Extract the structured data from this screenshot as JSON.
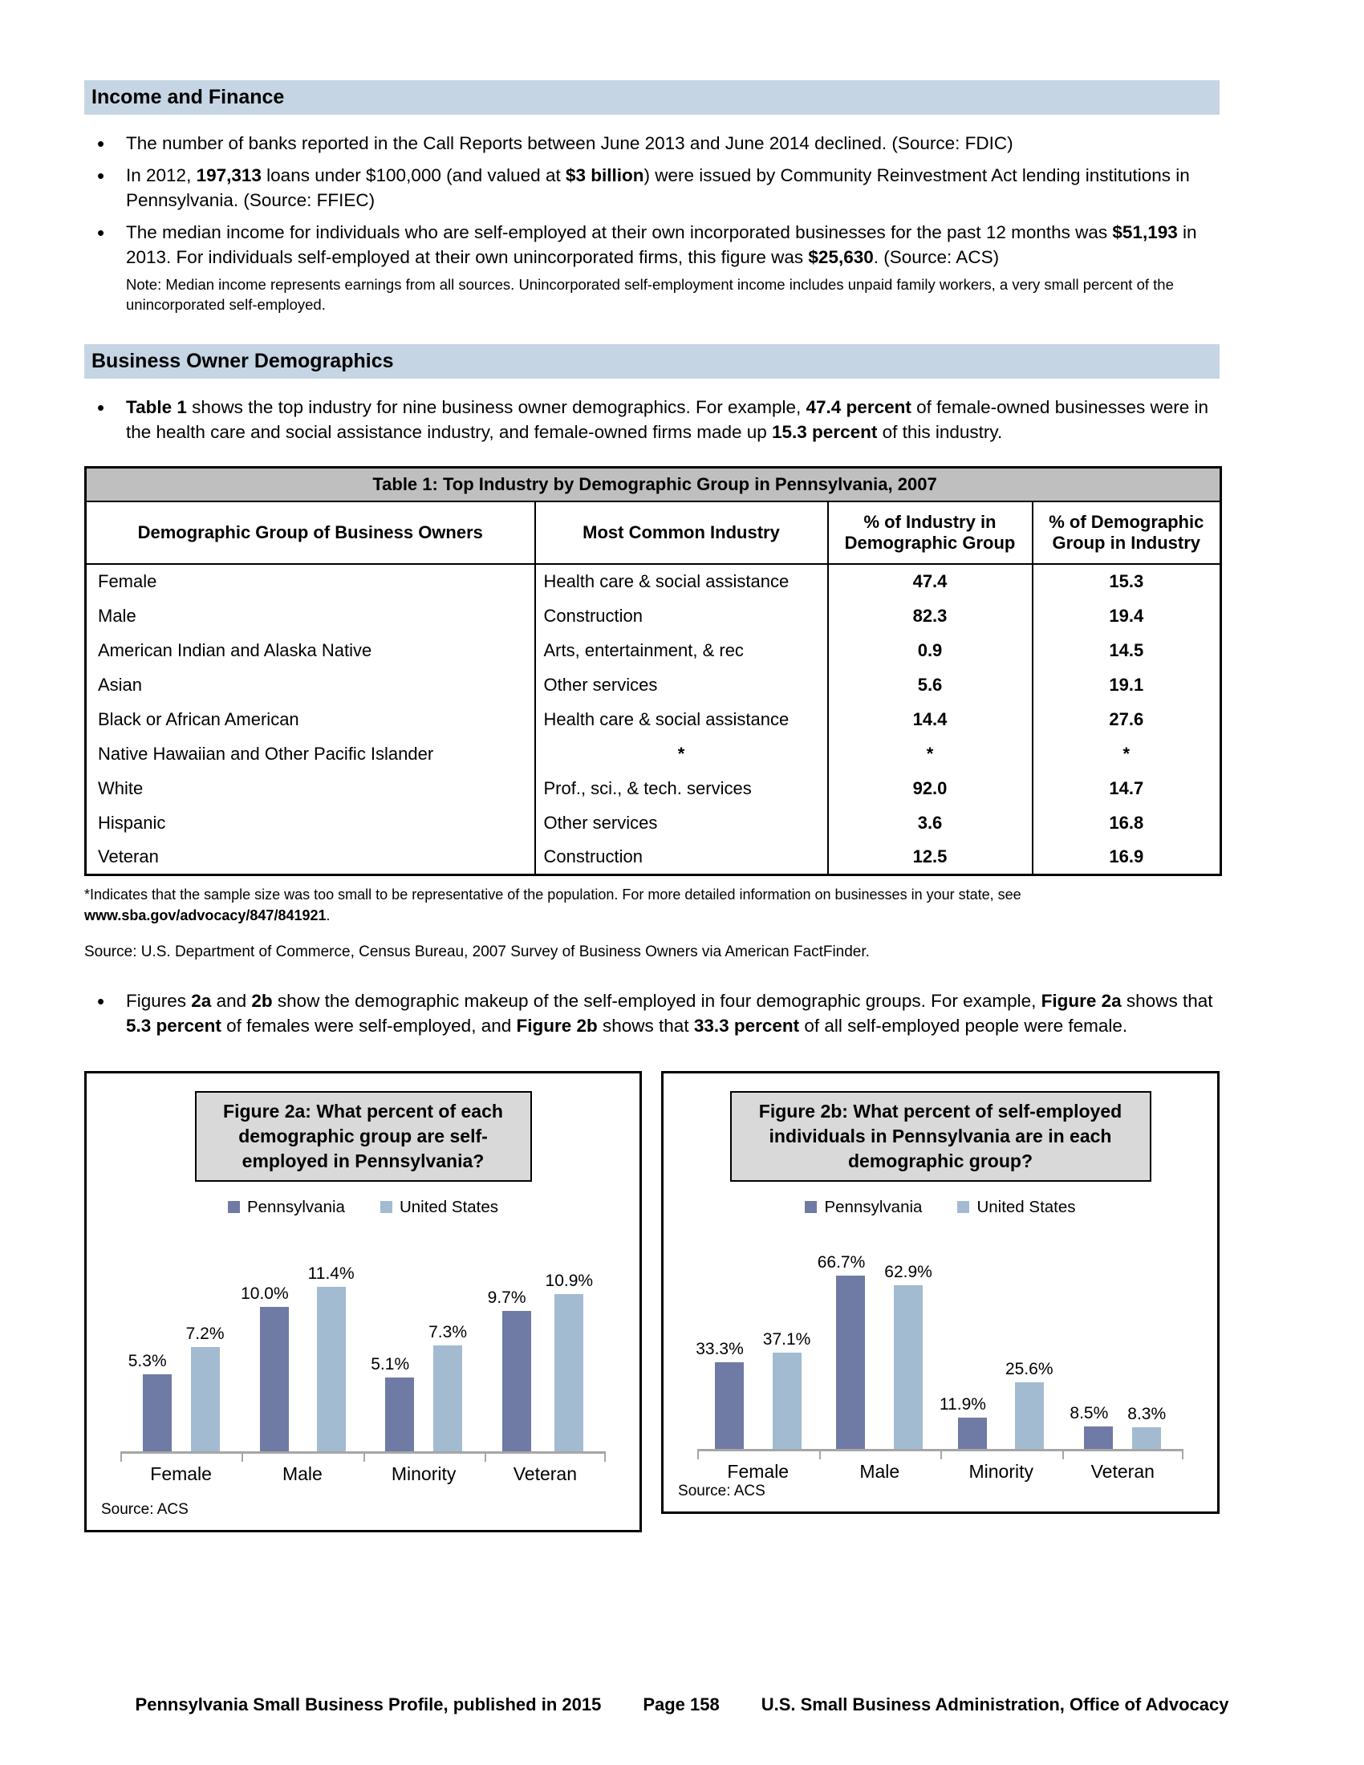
{
  "colors": {
    "section_header_bg": "#C5D5E3",
    "table_title_bg": "#BFBFBF",
    "figure_title_bg": "#D9D9D9",
    "pennsylvania_bar": "#6F7BA5",
    "united_states_bar": "#A3BBD1",
    "axis_line": "#A6A6A6"
  },
  "income_finance": {
    "title": "Income and Finance",
    "bullets": [
      {
        "segments": [
          {
            "t": "The number of banks reported in the Call Reports between June 2013 and June 2014 declined. (Source: FDIC)"
          }
        ]
      },
      {
        "segments": [
          {
            "t": "In 2012, "
          },
          {
            "t": "197,313",
            "b": 1
          },
          {
            "t": " loans under $100,000 (and valued at "
          },
          {
            "t": "$3 billion",
            "b": 1
          },
          {
            "t": ") were issued by Community Reinvestment Act lending institutions in Pennsylvania. (Source: FFIEC)"
          }
        ]
      },
      {
        "segments": [
          {
            "t": "The median income for individuals who are self-employed at their own incorporated businesses for the past 12 months was "
          },
          {
            "t": "$51,193",
            "b": 1
          },
          {
            "t": " in 2013. For individuals self-employed at their own unincorporated firms, this figure was "
          },
          {
            "t": "$25,630",
            "b": 1
          },
          {
            "t": ".  (Source: ACS)"
          }
        ]
      }
    ],
    "note": "Note: Median income represents earnings from all sources. Unincorporated self-employment income includes unpaid family workers, a very small percent of the unincorporated self-employed."
  },
  "business_demographics": {
    "title": "Business Owner Demographics",
    "bullet": {
      "segments": [
        {
          "t": "Table 1",
          "b": 1
        },
        {
          "t": " shows the top industry for nine business owner demographics. For example, "
        },
        {
          "t": "47.4 percent",
          "b": 1
        },
        {
          "t": " of female-owned businesses were in the health care and social assistance industry, and female-owned firms made up "
        },
        {
          "t": "15.3 percent",
          "b": 1
        },
        {
          "t": " of this industry."
        }
      ]
    },
    "figures_bullet": {
      "segments": [
        {
          "t": "Figures "
        },
        {
          "t": "2a",
          "b": 1
        },
        {
          "t": " and "
        },
        {
          "t": "2b",
          "b": 1
        },
        {
          "t": " show the demographic makeup of the self-employed in four demographic groups. For example, "
        },
        {
          "t": "Figure 2a",
          "b": 1
        },
        {
          "t": " shows that "
        },
        {
          "t": "5.3 percent",
          "b": 1
        },
        {
          "t": " of females were self-employed, and "
        },
        {
          "t": "Figure 2b",
          "b": 1
        },
        {
          "t": " shows that "
        },
        {
          "t": "33.3 percent",
          "b": 1
        },
        {
          "t": " of all self-employed people were female."
        }
      ]
    }
  },
  "table1": {
    "title": "Table 1: Top Industry by Demographic Group in Pennsylvania, 2007",
    "headers": [
      "Demographic Group of Business Owners",
      "Most Common Industry",
      "% of Industry in Demographic Group",
      "% of Demographic Group in Industry"
    ],
    "rows": [
      [
        "Female",
        "Health care & social assistance",
        "47.4",
        "15.3"
      ],
      [
        "Male",
        "Construction",
        "82.3",
        "19.4"
      ],
      [
        "American Indian and Alaska Native",
        "Arts, entertainment, & rec",
        "0.9",
        "14.5"
      ],
      [
        "Asian",
        "Other services",
        "5.6",
        "19.1"
      ],
      [
        "Black or African American",
        "Health care & social assistance",
        "14.4",
        "27.6"
      ],
      [
        "Native Hawaiian and Other Pacific Islander",
        "*",
        "*",
        "*"
      ],
      [
        "White",
        "Prof., sci., & tech. services",
        "92.0",
        "14.7"
      ],
      [
        "Hispanic",
        "Other services",
        "3.6",
        "16.8"
      ],
      [
        "Veteran",
        "Construction",
        "12.5",
        "16.9"
      ]
    ],
    "footnote": {
      "segments": [
        {
          "t": "*Indicates that the sample size was too small to be representative of the population. For more detailed information on businesses in your state, see "
        },
        {
          "t": "www.sba.gov/advocacy/847/841921",
          "b": 1
        },
        {
          "t": "."
        }
      ]
    },
    "source": "Source: U.S. Department of Commerce, Census Bureau, 2007 Survey of Business Owners via American FactFinder."
  },
  "chart_data": [
    {
      "type": "bar",
      "title": "Figure 2a: What percent of each demographic group are self-employed in Pennsylvania?",
      "categories": [
        "Female",
        "Male",
        "Minority",
        "Veteran"
      ],
      "series": [
        {
          "name": "Pennsylvania",
          "color": "#6F7BA5",
          "values": [
            5.3,
            10.0,
            5.1,
            9.7
          ]
        },
        {
          "name": "United States",
          "color": "#A3BBD1",
          "values": [
            7.2,
            11.4,
            7.3,
            10.9
          ]
        }
      ],
      "value_suffix": "%",
      "ylim": [
        0,
        14
      ],
      "legend_position": "top",
      "grid": false,
      "source": "Source: ACS"
    },
    {
      "type": "bar",
      "title": "Figure 2b: What percent of self-employed individuals in Pennsylvania are in each demographic group?",
      "categories": [
        "Female",
        "Male",
        "Minority",
        "Veteran"
      ],
      "series": [
        {
          "name": "Pennsylvania",
          "color": "#6F7BA5",
          "values": [
            33.3,
            66.7,
            11.9,
            8.5
          ]
        },
        {
          "name": "United States",
          "color": "#A3BBD1",
          "values": [
            37.1,
            62.9,
            25.6,
            8.3
          ]
        }
      ],
      "value_suffix": "%",
      "ylim": [
        0,
        80
      ],
      "legend_position": "top",
      "grid": false,
      "source": "Source: ACS"
    }
  ],
  "footer": {
    "left": "Pennsylvania Small Business Profile, published in 2015",
    "center": "Page 158",
    "right": "U.S. Small Business Administration, Office of Advocacy"
  }
}
